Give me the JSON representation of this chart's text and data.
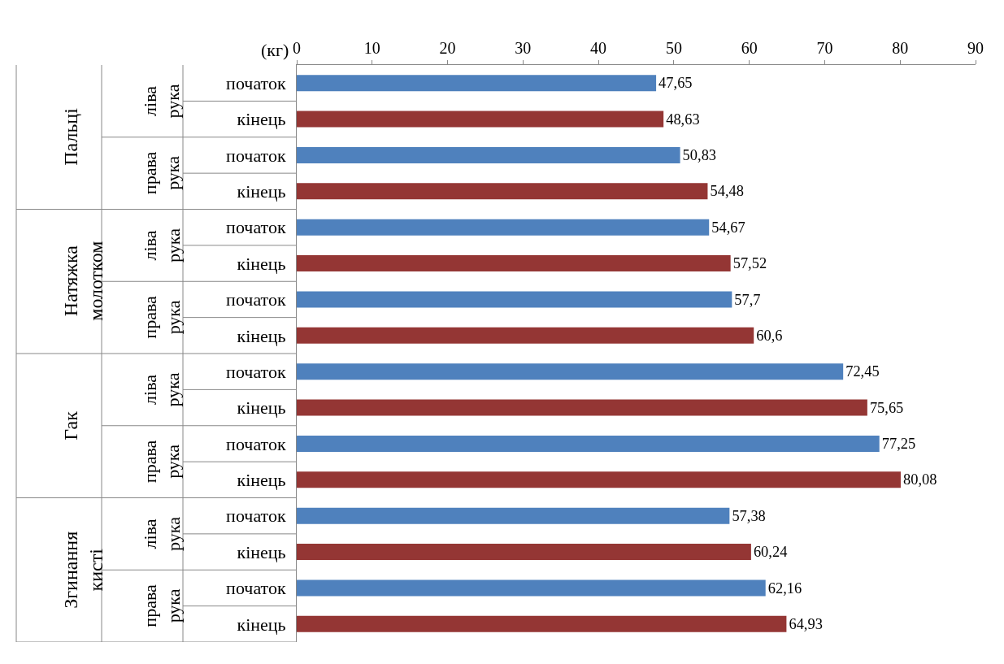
{
  "chart_data": {
    "type": "bar",
    "orientation": "horizontal",
    "xlabel": "(кг)",
    "categories": [
      "початок",
      "кінець",
      "початок",
      "кінець",
      "початок",
      "кінець",
      "початок",
      "кінець",
      "початок",
      "кінець",
      "початок",
      "кінець",
      "початок",
      "кінець",
      "початок",
      "кінець"
    ],
    "values": [
      47.65,
      48.63,
      50.83,
      54.48,
      54.67,
      57.52,
      57.7,
      60.6,
      72.45,
      75.65,
      77.25,
      80.08,
      57.38,
      60.24,
      62.16,
      64.93
    ],
    "value_labels": [
      "47,65",
      "48,63",
      "50,83",
      "54,48",
      "54,67",
      "57,52",
      "57,7",
      "60,6",
      "72,45",
      "75,65",
      "77,25",
      "80,08",
      "57,38",
      "60,24",
      "62,16",
      "64,93"
    ],
    "colors": [
      "#4f81bd",
      "#943634",
      "#4f81bd",
      "#943634",
      "#4f81bd",
      "#943634",
      "#4f81bd",
      "#943634",
      "#4f81bd",
      "#943634",
      "#4f81bd",
      "#943634",
      "#4f81bd",
      "#943634",
      "#4f81bd",
      "#943634"
    ],
    "xlim": [
      0,
      90
    ],
    "xticks": [
      0,
      10,
      20,
      30,
      40,
      50,
      60,
      70,
      80,
      90
    ],
    "annotations": [
      "Пальці",
      "Натяжка молотком",
      "Гак",
      "Згинання кисті",
      "ліва рука",
      "права рука",
      "ліва рука",
      "права рука",
      "ліва рука",
      "права рука",
      "ліва рука",
      "права рука"
    ]
  }
}
